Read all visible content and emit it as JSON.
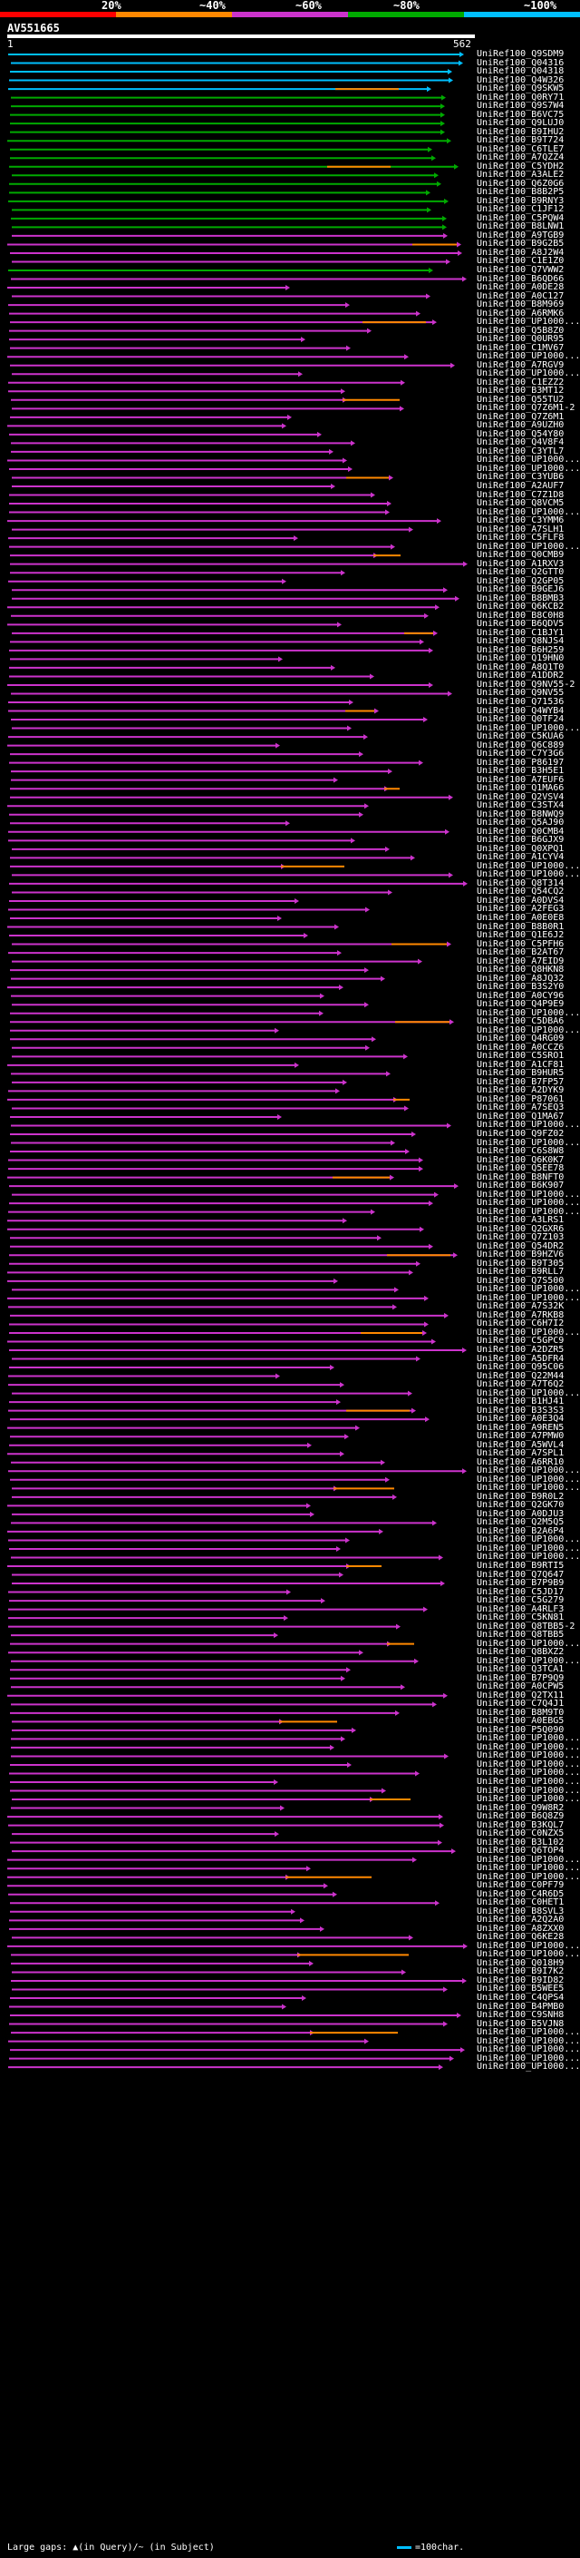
{
  "legend": {
    "percent_labels": [
      "20%",
      "~40%",
      "~60%",
      "~80%",
      "~100%"
    ],
    "band_colors": [
      "#ff0000",
      "#ff8800",
      "#cc33cc",
      "#00aa00",
      "#00bfff"
    ]
  },
  "query": {
    "name": "AV551665",
    "start": "1",
    "end": "562"
  },
  "hits": [
    "UniRef100_Q9SDM9",
    "UniRef100_Q04316",
    "UniRef100_Q04318",
    "UniRef100_Q4W326",
    "UniRef100_Q9SKW5",
    "UniRef100_Q0RY71",
    "UniRef100_Q9S7W4",
    "UniRef100_B6VC75",
    "UniRef100_Q9LUJ0",
    "UniRef100_B9IHU2",
    "UniRef100_B9T724",
    "UniRef100_C6TLE7",
    "UniRef100_A7QZZ4",
    "UniRef100_C5YDH2",
    "UniRef100_A3ALE2",
    "UniRef100_Q6Z0G6",
    "UniRef100_B8B2P5",
    "UniRef100_B9RNY3",
    "UniRef100_C1JF12",
    "UniRef100_C5PQW4",
    "UniRef100_B8LNW1",
    "UniRef100_A9TGB9",
    "UniRef100_B9G2B5",
    "UniRef100_A8J2W4",
    "UniRef100_C1E1Z0",
    "UniRef100_Q7VWW2",
    "UniRef100_B6QD66",
    "UniRef100_A0DE28",
    "UniRef100_A0C127",
    "UniRef100_B8M969",
    "UniRef100_A6RMK6",
    "UniRef100_UP1000...",
    "UniRef100_Q5B8Z0",
    "UniRef100_Q0UR95",
    "UniRef100_C1MV67",
    "UniRef100_UP1000...",
    "UniRef100_A7RGV9",
    "UniRef100_UP1000...",
    "UniRef100_C1EZZ2",
    "UniRef100_B3MT12",
    "UniRef100_Q55TU2",
    "UniRef100_Q7Z6M1-2",
    "UniRef100_Q7Z6M1",
    "UniRef100_A9UZH0",
    "UniRef100_Q54Y80",
    "UniRef100_Q4V8F4",
    "UniRef100_C3YTL7",
    "UniRef100_UP1000...",
    "UniRef100_UP1000...",
    "UniRef100_C3YUB6",
    "UniRef100_A2AUF7",
    "UniRef100_C7Z1D8",
    "UniRef100_Q8VCM5",
    "UniRef100_UP1000...",
    "UniRef100_C3YMM6",
    "UniRef100_A7SLH1",
    "UniRef100_C5FLF8",
    "UniRef100_UP1000...",
    "UniRef100_Q0CMB9",
    "UniRef100_A1RXV3",
    "UniRef100_Q2GTT0",
    "UniRef100_Q2GP05",
    "UniRef100_B9GEJ6",
    "UniRef100_B8BMB3",
    "UniRef100_Q6KCB2",
    "UniRef100_B8C0H8",
    "UniRef100_B6QDV5",
    "UniRef100_C1BJY1",
    "UniRef100_Q8NJS4",
    "UniRef100_B6H259",
    "UniRef100_Q19HN0",
    "UniRef100_A8Q1T0",
    "UniRef100_A1DDR2",
    "UniRef100_Q9NV55-2",
    "UniRef100_Q9NV55",
    "UniRef100_Q71536",
    "UniRef100_Q4WYB4",
    "UniRef100_Q0TF24",
    "UniRef100_UP1000...",
    "UniRef100_C5KUA6",
    "UniRef100_Q6C889",
    "UniRef100_C7Y3G6",
    "UniRef100_P86197",
    "UniRef100_B3H5E1",
    "UniRef100_A7EUF6",
    "UniRef100_Q1MA66",
    "UniRef100_Q2VSV4",
    "UniRef100_C3STX4",
    "UniRef100_B8NWQ9",
    "UniRef100_Q5AJ90",
    "UniRef100_Q0CMB4",
    "UniRef100_B6GJX9",
    "UniRef100_Q0XPQ1",
    "UniRef100_A1CYV4",
    "UniRef100_UP1000...",
    "UniRef100_UP1000...",
    "UniRef100_Q8T314",
    "UniRef100_Q54CQ2",
    "UniRef100_A0DVS4",
    "UniRef100_A2FEG3",
    "UniRef100_A0E0E8",
    "UniRef100_B8B0R1",
    "UniRef100_Q1E6J2",
    "UniRef100_C5PFH6",
    "UniRef100_B2AT67",
    "UniRef100_A7EID9",
    "UniRef100_Q8HKN8",
    "UniRef100_A8JQ32",
    "UniRef100_B3S2Y0",
    "UniRef100_A0CY96",
    "UniRef100_Q4P9E9",
    "UniRef100_UP1000...",
    "UniRef100_C5DBA6",
    "UniRef100_UP1000...",
    "UniRef100_Q4RG09",
    "UniRef100_A0CCZ6",
    "UniRef100_C5SRO1",
    "UniRef100_A1CF81",
    "UniRef100_B9HUR5",
    "UniRef100_B7FP57",
    "UniRef100_A2DYK9",
    "UniRef100_P87061",
    "UniRef100_A7SEQ3",
    "UniRef100_Q1MA67",
    "UniRef100_UP1000...",
    "UniRef100_Q9FZ02",
    "UniRef100_UP1000...",
    "UniRef100_C6S8W8",
    "UniRef100_Q6K0K7",
    "UniRef100_Q5EE78",
    "UniRef100_B8NFT0",
    "UniRef100_B6K907",
    "UniRef100_UP1000...",
    "UniRef100_UP1000...",
    "UniRef100_UP1000...",
    "UniRef100_A3LRS1",
    "UniRef100_Q2GXR6",
    "UniRef100_Q7Z103",
    "UniRef100_Q54DR2",
    "UniRef100_B9HZV6",
    "UniRef100_B9T305",
    "UniRef100_B9RLL7",
    "UniRef100_Q7S500",
    "UniRef100_UP1000...",
    "UniRef100_UP1000...",
    "UniRef100_A7S32K",
    "UniRef100_A7RKB8",
    "UniRef100_C6H7I2",
    "UniRef100_UP1000...",
    "UniRef100_C5GPC9",
    "UniRef100_A2DZR5",
    "UniRef100_A5DFR4",
    "UniRef100_Q95C06",
    "UniRef100_Q22M44",
    "UniRef100_A7T6Q2",
    "UniRef100_UP1000...",
    "UniRef100_B1HJ41",
    "UniRef100_B3S3S3",
    "UniRef100_A0E3Q4",
    "UniRef100_A9REN5",
    "UniRef100_A7PMW0",
    "UniRef100_A5WVL4",
    "UniRef100_A7SPL1",
    "UniRef100_A6RR10",
    "UniRef100_UP1000...",
    "UniRef100_UP1000...",
    "UniRef100_UP1000...",
    "UniRef100_B9R0L2",
    "UniRef100_Q2GK70",
    "UniRef100_A0DJU3",
    "UniRef100_Q2M5Q5",
    "UniRef100_B2A6P4",
    "UniRef100_UP1000...",
    "UniRef100_UP1000...",
    "UniRef100_UP1000...",
    "UniRef100_B9RTI5",
    "UniRef100_Q7Q647",
    "UniRef100_B7P9B9",
    "UniRef100_C5JD17",
    "UniRef100_C5G279",
    "UniRef100_A4RLF3",
    "UniRef100_C5KN81",
    "UniRef100_Q8TBB5-2",
    "UniRef100_Q8TBB5",
    "UniRef100_UP1000...",
    "UniRef100_Q8BXZ2",
    "UniRef100_UP1000...",
    "UniRef100_Q3TCA1",
    "UniRef100_B7P9Q9",
    "UniRef100_A0CPW5",
    "UniRef100_Q2TX11",
    "UniRef100_C7Q4J1",
    "UniRef100_B8M9T0",
    "UniRef100_A0EBG5",
    "UniRef100_P5Q090",
    "UniRef100_UP1000...",
    "UniRef100_UP1000...",
    "UniRef100_UP1000...",
    "UniRef100_UP1000...",
    "UniRef100_UP1000...",
    "UniRef100_UP1000...",
    "UniRef100_UP1000...",
    "UniRef100_UP1000...",
    "UniRef100_Q9W8R2",
    "UniRef100_B6Q8Z9",
    "UniRef100_B3KQL7",
    "UniRef100_C0NZX5",
    "UniRef100_B3L102",
    "UniRef100_Q6TOP4",
    "UniRef100_UP1000...",
    "UniRef100_UP1000...",
    "UniRef100_UP1000...",
    "UniRef100_C0PF79",
    "UniRef100_C4R6D5",
    "UniRef100_C0HET1",
    "UniRef100_B8SVL3",
    "UniRef100_A2Q2A0",
    "UniRef100_A8ZXX0",
    "UniRef100_Q6KE28",
    "UniRef100_UP1000...",
    "UniRef100_UP1000...",
    "UniRef100_Q018H9",
    "UniRef100_B9I7K2",
    "UniRef100_B9ID82",
    "UniRef100_B5WEE5",
    "UniRef100_C4QPS4",
    "UniRef100_B4PMB0",
    "UniRef100_C9SNH8",
    "UniRef100_B5VJN8",
    "UniRef100_UP1000...",
    "UniRef100_UP1000...",
    "UniRef100_UP1000...",
    "UniRef100_UP1000...",
    "UniRef100_UP1000..."
  ],
  "footer": {
    "large_gaps_text": "Large gaps: ▲(in Query)/~ (in Subject)",
    "scale_text": "=100char."
  }
}
